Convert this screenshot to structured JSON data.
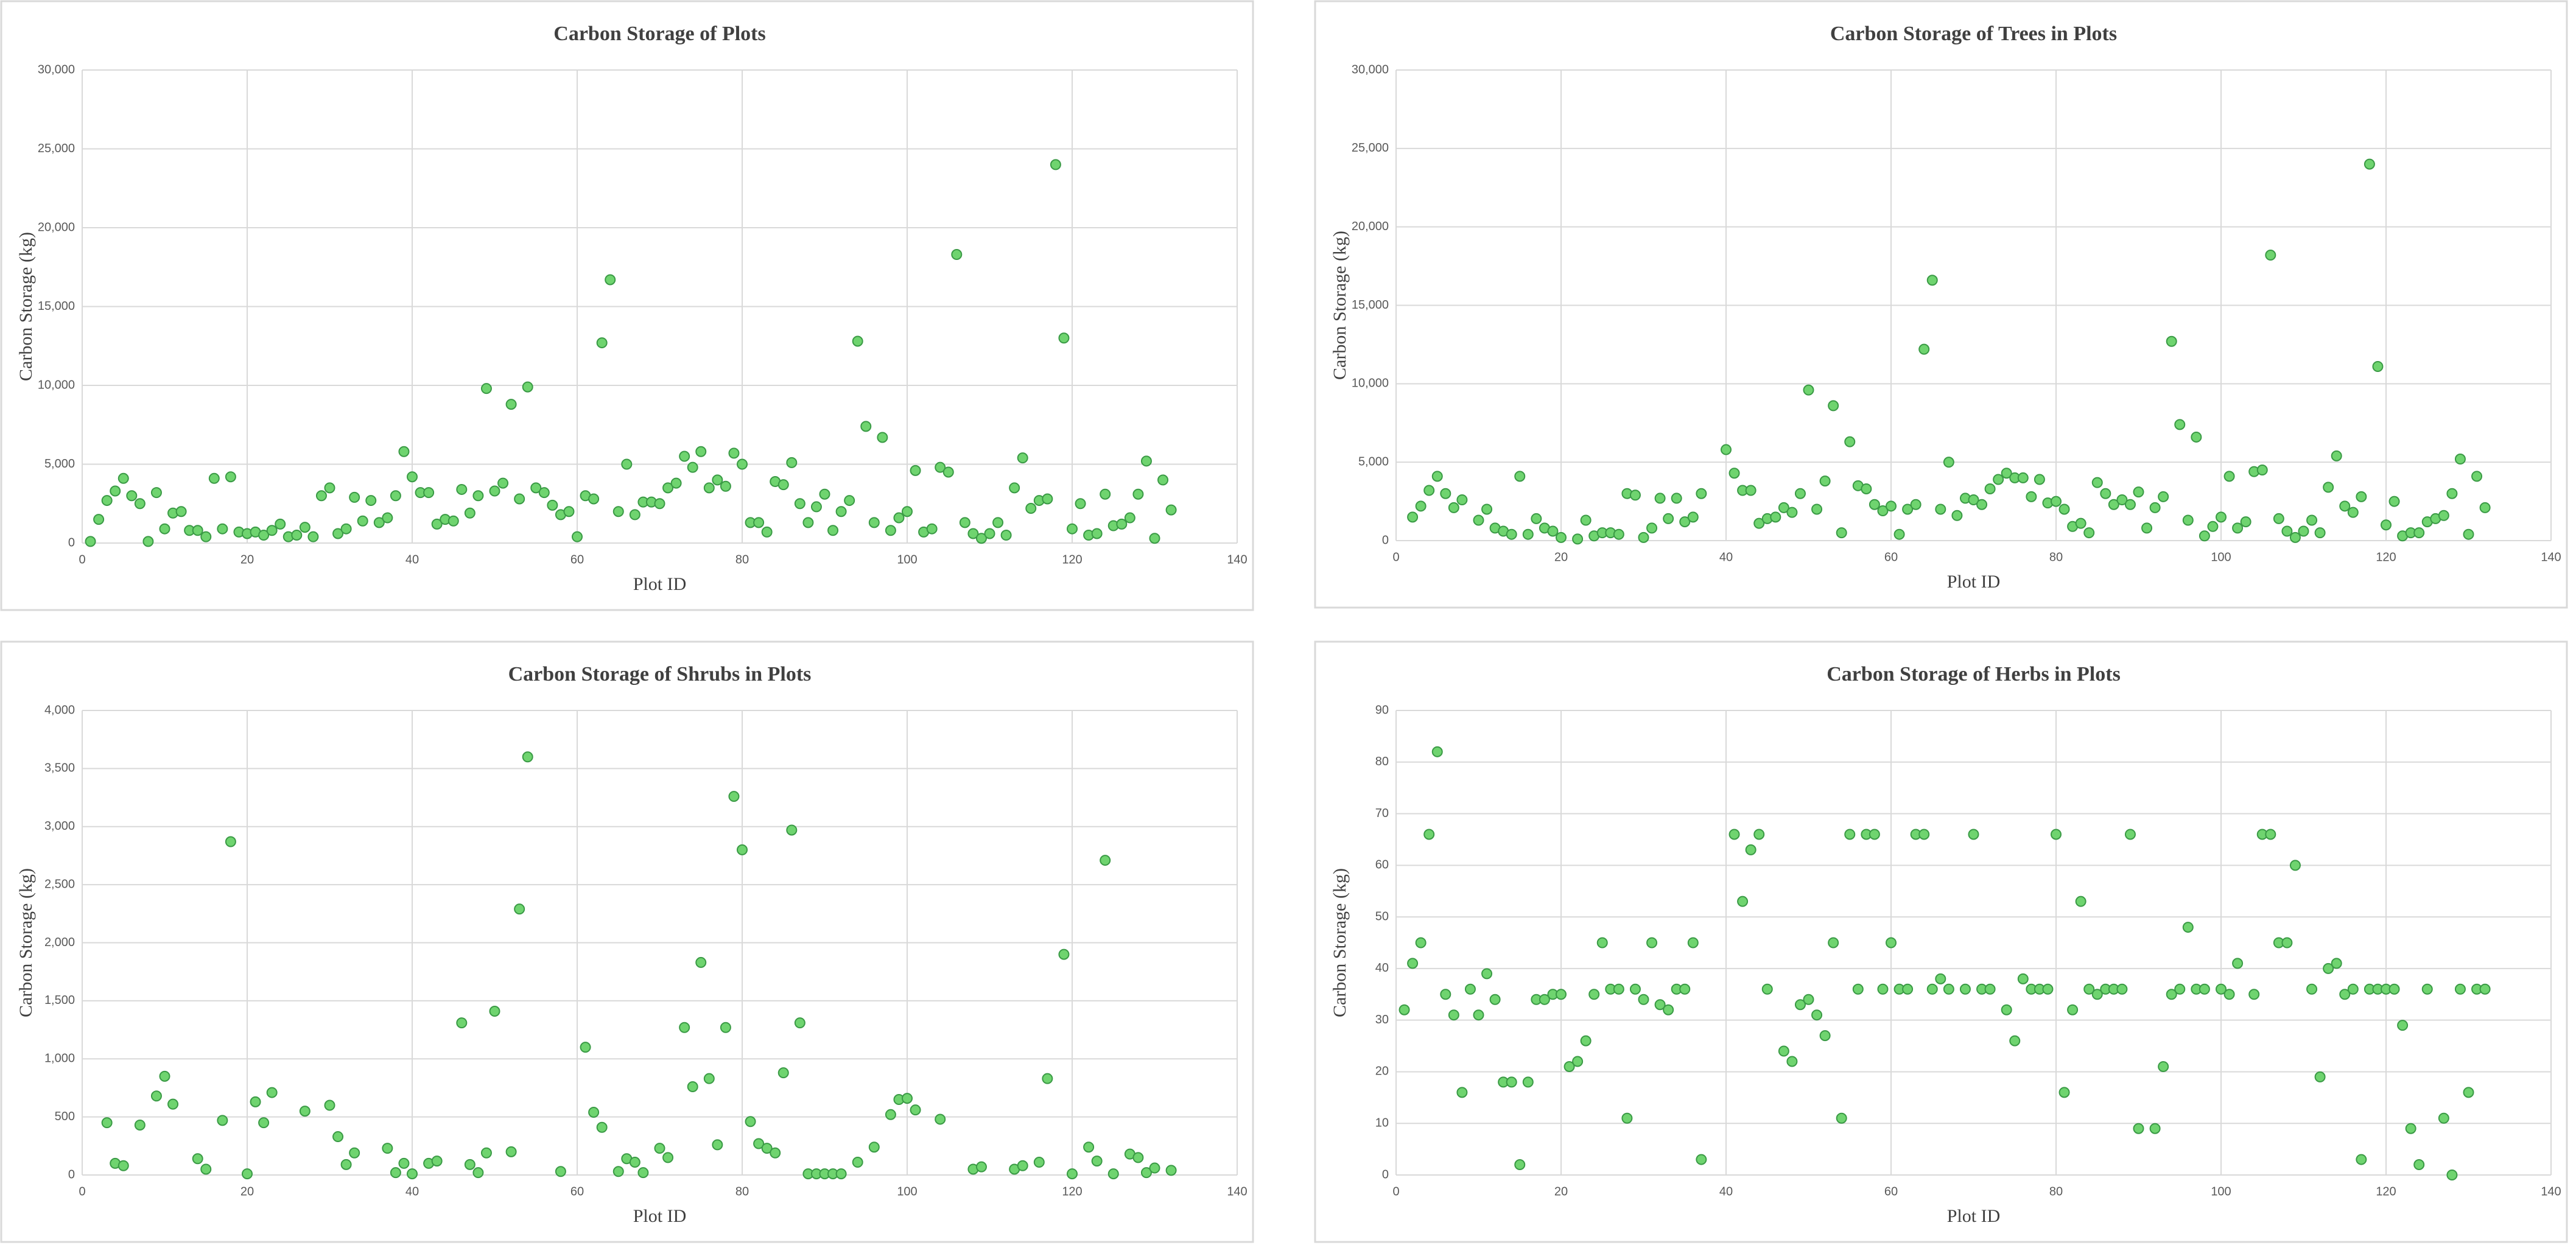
{
  "chart_data": [
    {
      "type": "scatter",
      "title": "Carbon Storage of Plots",
      "x_label": "Plot ID",
      "y_label": "Carbon Storage (kg)",
      "color": "#6fd46f",
      "x": [
        1,
        2,
        3,
        4,
        5,
        6,
        7,
        8,
        9,
        10,
        11,
        12,
        13,
        14,
        15,
        16,
        17,
        18,
        19,
        20,
        21,
        22,
        23,
        24,
        25,
        26,
        27,
        28,
        29,
        30,
        31,
        32,
        33,
        34,
        35,
        36,
        37,
        38,
        39,
        40,
        41,
        42,
        43,
        44,
        45,
        46,
        47,
        48,
        49,
        50,
        51,
        52,
        53,
        54,
        55,
        56,
        57,
        58,
        59,
        60,
        61,
        62,
        63,
        64,
        65,
        66,
        67,
        68,
        69,
        70,
        71,
        72,
        73,
        74,
        75,
        76,
        77,
        78,
        79,
        80,
        81,
        82,
        83,
        84,
        85,
        86,
        87,
        88,
        89,
        90,
        91,
        92,
        93,
        94,
        95,
        96,
        97,
        98,
        99,
        100,
        101,
        102,
        103,
        104,
        105,
        106,
        107,
        108,
        109,
        110,
        111,
        112,
        113,
        114,
        115,
        116,
        117,
        118,
        119,
        120,
        121,
        122,
        123,
        124,
        125,
        126,
        127,
        128,
        129,
        130,
        131,
        132
      ],
      "values": [
        100,
        1500,
        2700,
        3300,
        4100,
        3000,
        2500,
        100,
        3200,
        900,
        1900,
        2000,
        800,
        800,
        400,
        4100,
        900,
        4200,
        700,
        600,
        700,
        500,
        800,
        1200,
        400,
        500,
        1000,
        400,
        3000,
        3500,
        600,
        900,
        2900,
        1400,
        2700,
        1300,
        1600,
        3000,
        5800,
        4200,
        3200,
        3200,
        1200,
        1500,
        1400,
        3400,
        1900,
        3000,
        9800,
        3300,
        3800,
        8800,
        2800,
        9900,
        3500,
        3200,
        2400,
        1800,
        2000,
        400,
        3000,
        2800,
        12700,
        16700,
        2000,
        5000,
        1800,
        2600,
        2600,
        2500,
        3500,
        3800,
        5500,
        4800,
        5800,
        3500,
        4000,
        3600,
        5700,
        5000,
        1300,
        1300,
        700,
        3900,
        3700,
        5100,
        2500,
        1300,
        2300,
        3100,
        800,
        2000,
        2700,
        12800,
        7400,
        1300,
        6700,
        800,
        1600,
        2000,
        4600,
        700,
        900,
        4800,
        4500,
        18300,
        1300,
        600,
        300,
        600,
        1300,
        500,
        3500,
        5400,
        2200,
        2700,
        2800,
        24000,
        13000,
        900,
        2500,
        500,
        600,
        3100,
        1100,
        1200,
        1600,
        3100,
        5200,
        300,
        4000,
        2100
      ],
      "xlim": [
        0,
        140
      ],
      "xticks": [
        0,
        20,
        40,
        60,
        80,
        100,
        120,
        140
      ],
      "ylim": [
        0,
        30000
      ],
      "yticks": [
        0,
        {
          "value": 5000,
          "label": "5,000"
        },
        {
          "value": 10000,
          "label": "10,000"
        },
        {
          "value": 15000,
          "label": "15,000"
        },
        {
          "value": 20000,
          "label": "20,000"
        },
        {
          "value": 25000,
          "label": "25,000"
        },
        {
          "value": 30000,
          "label": "30,000"
        }
      ],
      "grid": true
    },
    {
      "type": "scatter",
      "title": "Carbon Storage of Trees in Plots",
      "x_label": "Plot ID",
      "y_label": "Carbon Storage (kg)",
      "color": "#6fd46f",
      "x": [
        2,
        3,
        4,
        5,
        6,
        7,
        8,
        10,
        11,
        12,
        13,
        14,
        15,
        16,
        17,
        18,
        19,
        20,
        22,
        23,
        24,
        25,
        26,
        27,
        28,
        29,
        30,
        31,
        32,
        33,
        34,
        35,
        36,
        37,
        40,
        41,
        42,
        43,
        44,
        45,
        46,
        47,
        48,
        49,
        50,
        51,
        52,
        53,
        54,
        55,
        56,
        57,
        58,
        59,
        60,
        61,
        62,
        63,
        64,
        65,
        66,
        67,
        68,
        69,
        70,
        71,
        72,
        73,
        74,
        75,
        76,
        77,
        78,
        79,
        80,
        81,
        82,
        83,
        84,
        85,
        86,
        87,
        88,
        89,
        90,
        91,
        92,
        93,
        94,
        95,
        96,
        97,
        98,
        99,
        100,
        101,
        102,
        103,
        104,
        105,
        106,
        107,
        108,
        109,
        110,
        111,
        112,
        113,
        114,
        115,
        116,
        117,
        118,
        119,
        120,
        121,
        122,
        123,
        124,
        125,
        126,
        127,
        128,
        129,
        130,
        131,
        132
      ],
      "values": [
        1500,
        2200,
        3200,
        4100,
        3000,
        2100,
        2600,
        1300,
        2000,
        800,
        600,
        400,
        4100,
        400,
        1400,
        800,
        600,
        200,
        100,
        1300,
        300,
        500,
        500,
        400,
        3000,
        2900,
        200,
        800,
        2700,
        1400,
        2700,
        1200,
        1500,
        3000,
        5800,
        4300,
        3200,
        3200,
        1100,
        1400,
        1500,
        2100,
        1800,
        3000,
        9600,
        2000,
        3800,
        8600,
        500,
        6300,
        3500,
        3300,
        2300,
        1900,
        2200,
        400,
        2000,
        2300,
        12200,
        16600,
        2000,
        5000,
        1600,
        2700,
        2600,
        2300,
        3300,
        3900,
        4300,
        4000,
        4000,
        2800,
        3900,
        2400,
        2500,
        2000,
        900,
        1100,
        500,
        3700,
        3000,
        2300,
        2600,
        2300,
        3100,
        800,
        2100,
        2800,
        12700,
        7400,
        1300,
        6600,
        300,
        900,
        1500,
        4100,
        800,
        1200,
        4400,
        4500,
        18200,
        1400,
        600,
        200,
        600,
        1300,
        500,
        3400,
        5400,
        2200,
        1800,
        2800,
        24000,
        11100,
        1000,
        2500,
        300,
        500,
        500,
        1200,
        1400,
        1600,
        3000,
        5200,
        400,
        4100,
        2100
      ],
      "xlim": [
        0,
        140
      ],
      "xticks": [
        0,
        20,
        40,
        60,
        80,
        100,
        120,
        140
      ],
      "ylim": [
        0,
        30000
      ],
      "yticks": [
        0,
        {
          "value": 5000,
          "label": "5,000"
        },
        {
          "value": 10000,
          "label": "10,000"
        },
        {
          "value": 15000,
          "label": "15,000"
        },
        {
          "value": 20000,
          "label": "20,000"
        },
        {
          "value": 25000,
          "label": "25,000"
        },
        {
          "value": 30000,
          "label": "30,000"
        }
      ],
      "grid": true
    },
    {
      "type": "scatter",
      "title": "Carbon Storage of Shrubs in Plots",
      "x_label": "Plot ID",
      "y_label": "Carbon Storage (kg)",
      "color": "#6fd46f",
      "x": [
        3,
        4,
        5,
        7,
        9,
        10,
        11,
        14,
        15,
        17,
        18,
        20,
        21,
        22,
        23,
        27,
        30,
        31,
        32,
        33,
        37,
        38,
        39,
        40,
        42,
        43,
        46,
        47,
        48,
        49,
        50,
        52,
        53,
        54,
        58,
        61,
        62,
        63,
        65,
        66,
        67,
        68,
        70,
        71,
        73,
        74,
        75,
        76,
        77,
        78,
        79,
        80,
        81,
        82,
        83,
        84,
        85,
        86,
        87,
        88,
        89,
        90,
        91,
        92,
        94,
        96,
        98,
        99,
        100,
        101,
        104,
        108,
        109,
        113,
        114,
        116,
        117,
        119,
        120,
        122,
        123,
        124,
        125,
        127,
        128,
        129,
        130,
        132
      ],
      "values": [
        450,
        100,
        80,
        430,
        680,
        850,
        610,
        140,
        50,
        470,
        2870,
        10,
        630,
        450,
        710,
        550,
        600,
        330,
        90,
        190,
        230,
        20,
        100,
        10,
        100,
        120,
        1310,
        90,
        20,
        190,
        1410,
        200,
        2290,
        3600,
        30,
        1100,
        540,
        410,
        30,
        140,
        110,
        20,
        230,
        150,
        1270,
        760,
        1830,
        830,
        260,
        1270,
        3260,
        2800,
        460,
        270,
        230,
        190,
        880,
        2970,
        1310,
        10,
        10,
        10,
        10,
        10,
        110,
        240,
        520,
        650,
        660,
        560,
        480,
        50,
        70,
        50,
        80,
        110,
        830,
        1900,
        10,
        240,
        120,
        2710,
        10,
        180,
        150,
        20,
        60,
        40
      ],
      "xlim": [
        0,
        140
      ],
      "xticks": [
        0,
        20,
        40,
        60,
        80,
        100,
        120,
        140
      ],
      "ylim": [
        0,
        4000
      ],
      "yticks": [
        0,
        500,
        {
          "value": 1000,
          "label": "1,000"
        },
        {
          "value": 1500,
          "label": "1,500"
        },
        {
          "value": 2000,
          "label": "2,000"
        },
        {
          "value": 2500,
          "label": "2,500"
        },
        {
          "value": 3000,
          "label": "3,000"
        },
        {
          "value": 3500,
          "label": "3,500"
        },
        {
          "value": 4000,
          "label": "4,000"
        }
      ],
      "grid": true
    },
    {
      "type": "scatter",
      "title": "Carbon Storage of Herbs in Plots",
      "x_label": "Plot ID",
      "y_label": "Carbon Storage (kg)",
      "color": "#6fd46f",
      "x": [
        1,
        2,
        3,
        4,
        5,
        6,
        7,
        8,
        9,
        10,
        11,
        12,
        13,
        14,
        15,
        16,
        17,
        18,
        19,
        20,
        21,
        22,
        23,
        24,
        25,
        26,
        27,
        28,
        29,
        30,
        31,
        32,
        33,
        34,
        35,
        36,
        37,
        41,
        42,
        43,
        44,
        45,
        47,
        48,
        49,
        50,
        51,
        52,
        53,
        54,
        55,
        56,
        57,
        58,
        59,
        60,
        61,
        62,
        63,
        64,
        65,
        66,
        67,
        69,
        70,
        71,
        72,
        74,
        75,
        76,
        77,
        78,
        79,
        80,
        81,
        82,
        83,
        84,
        85,
        86,
        87,
        88,
        89,
        90,
        92,
        93,
        94,
        95,
        96,
        97,
        98,
        100,
        101,
        102,
        104,
        105,
        106,
        107,
        108,
        109,
        111,
        112,
        113,
        114,
        115,
        116,
        117,
        118,
        119,
        120,
        121,
        122,
        123,
        124,
        125,
        127,
        128,
        129,
        130,
        131,
        132
      ],
      "values": [
        32,
        41,
        45,
        66,
        82,
        35,
        31,
        16,
        36,
        31,
        39,
        34,
        18,
        18,
        2,
        18,
        34,
        34,
        35,
        35,
        21,
        22,
        26,
        35,
        45,
        36,
        36,
        11,
        36,
        34,
        45,
        33,
        32,
        36,
        36,
        45,
        3,
        66,
        53,
        63,
        66,
        36,
        24,
        22,
        33,
        34,
        31,
        27,
        45,
        11,
        66,
        36,
        66,
        66,
        36,
        45,
        36,
        36,
        66,
        66,
        36,
        38,
        36,
        36,
        66,
        36,
        36,
        32,
        26,
        38,
        36,
        36,
        36,
        66,
        16,
        32,
        53,
        36,
        35,
        36,
        36,
        36,
        66,
        9,
        9,
        21,
        35,
        36,
        48,
        36,
        36,
        36,
        35,
        41,
        35,
        66,
        66,
        45,
        45,
        60,
        36,
        19,
        40,
        41,
        35,
        36,
        3,
        36,
        36,
        36,
        36,
        29,
        9,
        2,
        36,
        11,
        0,
        36,
        16,
        36,
        36
      ],
      "xlim": [
        0,
        140
      ],
      "xticks": [
        0,
        20,
        40,
        60,
        80,
        100,
        120,
        140
      ],
      "ylim": [
        0,
        90
      ],
      "yticks": [
        0,
        10,
        20,
        30,
        40,
        50,
        60,
        70,
        80,
        90
      ],
      "grid": true
    }
  ]
}
